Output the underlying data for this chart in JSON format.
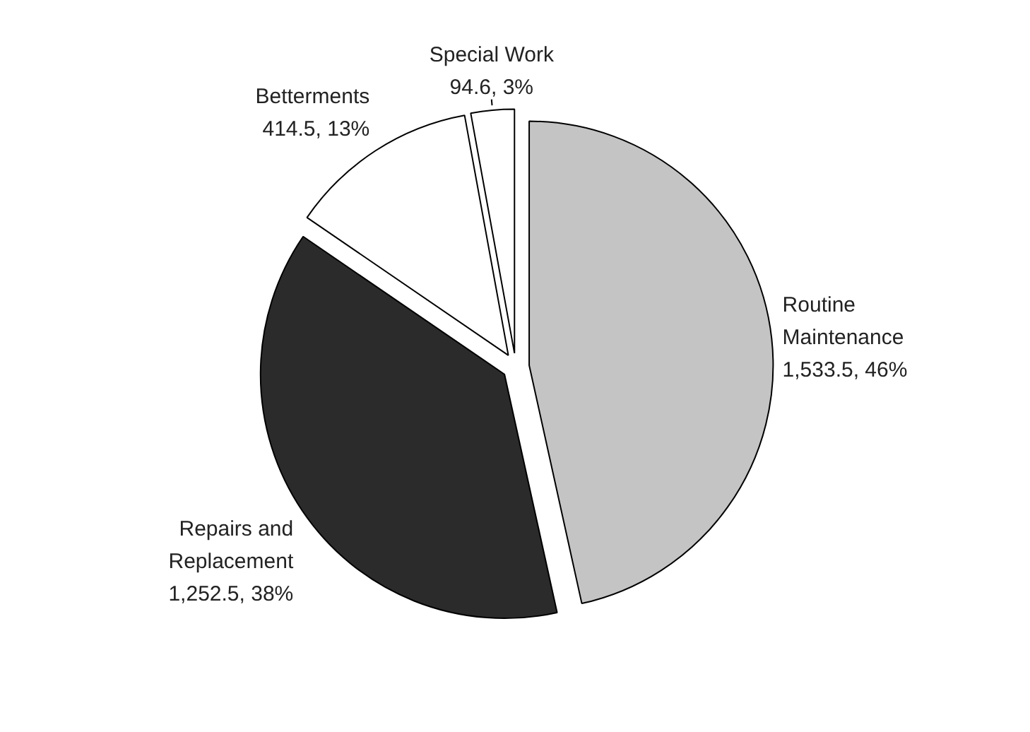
{
  "chart_data": {
    "type": "pie",
    "categories": [
      "Routine Maintenance",
      "Repairs and Replacement",
      "Betterments",
      "Special Work"
    ],
    "values": [
      1533.5,
      1252.5,
      414.5,
      94.6
    ],
    "value_labels": [
      "1,533.5, 46%",
      "1,252.5, 38%",
      "414.5, 13%",
      "94.6, 3%"
    ],
    "colors": [
      "#c4c4c4",
      "#2b2b2b",
      "#ffffff",
      "#ffffff"
    ]
  }
}
